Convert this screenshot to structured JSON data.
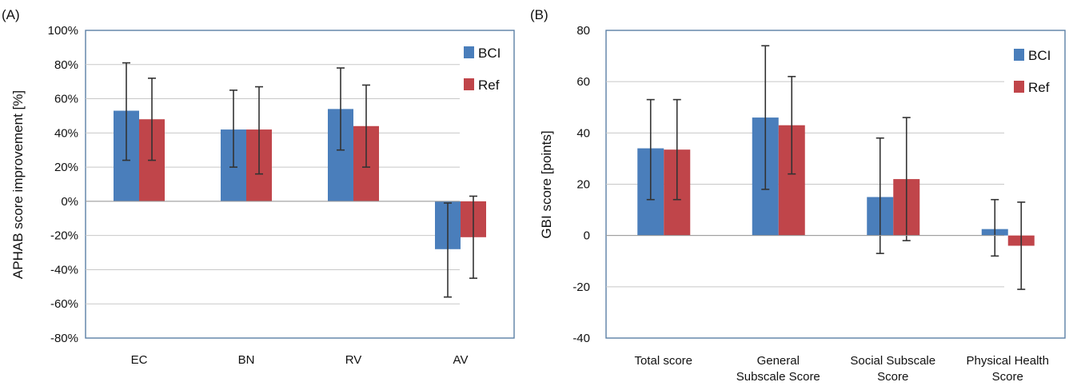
{
  "chart_data": [
    {
      "panel_label": "(A)",
      "type": "bar",
      "categories": [
        "EC",
        "BN",
        "RV",
        "AV"
      ],
      "series": [
        {
          "name": "BCI",
          "color": "#4a7ebb",
          "values": [
            53,
            42,
            54,
            -28
          ],
          "err_low": [
            24,
            20,
            30,
            -56
          ],
          "err_high": [
            81,
            65,
            78,
            -1
          ]
        },
        {
          "name": "Ref",
          "color": "#c0454a",
          "values": [
            48,
            42,
            44,
            -21
          ],
          "err_low": [
            24,
            16,
            20,
            -45
          ],
          "err_high": [
            72,
            67,
            68,
            3
          ]
        }
      ],
      "ylabel": "APHAB score improvement [%]",
      "ylim": [
        -80,
        100
      ],
      "yticks": [
        100,
        80,
        60,
        40,
        20,
        0,
        -20,
        -40,
        -60,
        -80
      ],
      "ytick_labels": [
        "100%",
        "80%",
        "60%",
        "40%",
        "20%",
        "0%",
        "-20%",
        "-40%",
        "-60%",
        "-80%"
      ],
      "grid": true,
      "legend_position": "top-right"
    },
    {
      "panel_label": "(B)",
      "type": "bar",
      "categories": [
        "Total score",
        "General Subscale Score",
        "Social Subscale Score",
        "Physical Health Score"
      ],
      "category_lines": [
        [
          "Total score"
        ],
        [
          "General",
          "Subscale Score"
        ],
        [
          "Social Subscale",
          "Score"
        ],
        [
          "Physical Health",
          "Score"
        ]
      ],
      "series": [
        {
          "name": "BCI",
          "color": "#4a7ebb",
          "values": [
            34,
            46,
            15,
            2.5
          ],
          "err_low": [
            14,
            18,
            -7,
            -8
          ],
          "err_high": [
            53,
            74,
            38,
            14
          ]
        },
        {
          "name": "Ref",
          "color": "#c0454a",
          "values": [
            33.5,
            43,
            22,
            -4
          ],
          "err_low": [
            14,
            24,
            -2,
            -21
          ],
          "err_high": [
            53,
            62,
            46,
            13
          ]
        }
      ],
      "ylabel": "GBI score [points]",
      "ylim": [
        -40,
        80
      ],
      "yticks": [
        80,
        60,
        40,
        20,
        0,
        -20,
        -40
      ],
      "ytick_labels": [
        "80",
        "60",
        "40",
        "20",
        "0",
        "-20",
        "-40"
      ],
      "grid": true,
      "legend_position": "top-right"
    }
  ]
}
